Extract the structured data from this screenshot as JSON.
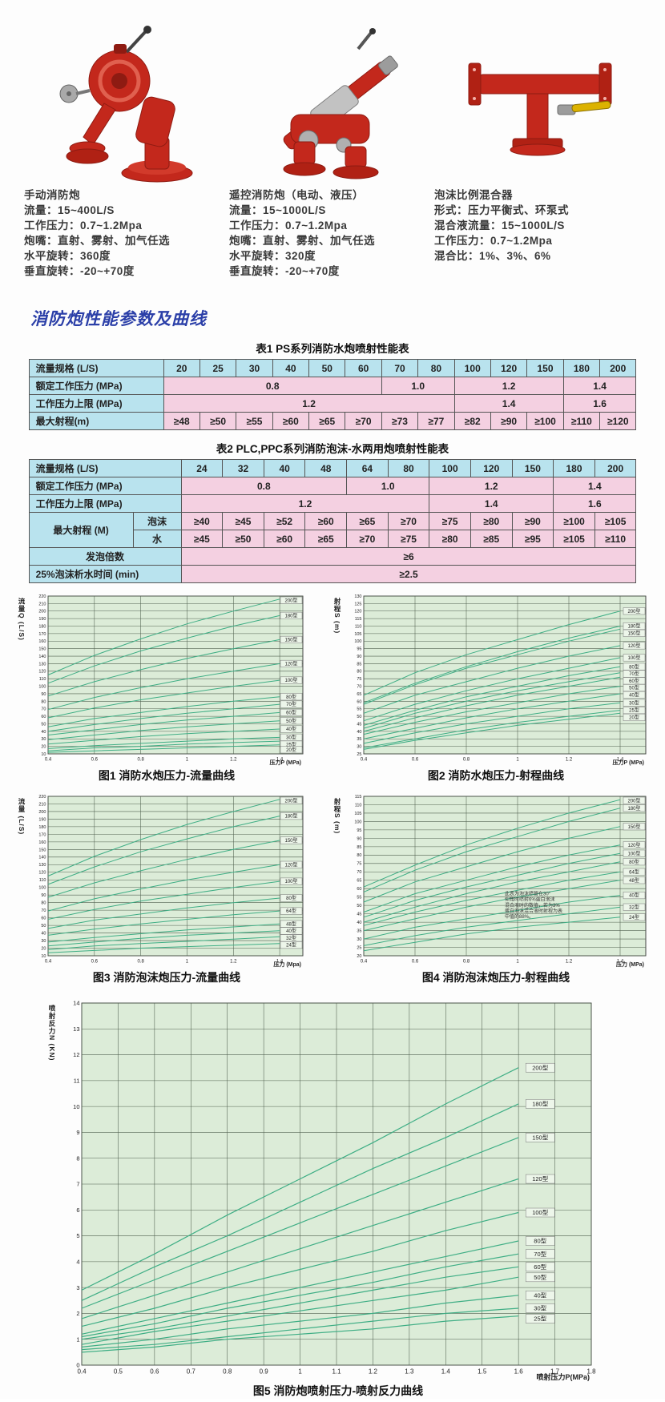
{
  "section_title": "消防炮性能参数及曲线",
  "colors": {
    "heading": "#2b3fa8",
    "table_header_bg": "#b9e3ee",
    "table_data_bg": "#f4d0e1",
    "chart_bg": "#dcecd8",
    "curve": "#3fae85",
    "monitor_red": "#c3281c",
    "valve_yellow": "#dcb200"
  },
  "products": [
    {
      "name": "手动消防炮",
      "photo_icon": "manual-fire-monitor-photo",
      "specs": [
        "流量：15~400L/S",
        "工作压力：0.7~1.2Mpa",
        "炮嘴：直射、雾射、加气任选",
        "水平旋转：360度",
        "垂直旋转：-20~+70度"
      ]
    },
    {
      "name": "遥控消防炮（电动、液压）",
      "photo_icon": "remote-fire-monitor-photo",
      "specs": [
        "流量：15~1000L/S",
        "工作压力：0.7~1.2Mpa",
        "炮嘴：直射、雾射、加气任选",
        "水平旋转：320度",
        "垂直旋转：-20~+70度"
      ]
    },
    {
      "name": "泡沫比例混合器",
      "photo_icon": "foam-proportioner-photo",
      "specs": [
        "形式：压力平衡式、环泵式",
        "混合液流量：15~1000L/S",
        "工作压力：0.7~1.2Mpa",
        "混合比：1%、3%、6%"
      ]
    }
  ],
  "table1": {
    "title": "表1   PS系列消防水炮喷射性能表",
    "flow_label": "流量规格 (L/S)",
    "flow_values": [
      "20",
      "25",
      "30",
      "40",
      "50",
      "60",
      "70",
      "80",
      "100",
      "120",
      "150",
      "180",
      "200"
    ],
    "rated_label": "额定工作压力 (MPa)",
    "rated_spans": [
      {
        "value": "0.8",
        "span": 6
      },
      {
        "value": "1.0",
        "span": 2
      },
      {
        "value": "1.2",
        "span": 3
      },
      {
        "value": "1.4",
        "span": 2
      }
    ],
    "upper_label": "工作压力上限 (MPa)",
    "upper_spans": [
      {
        "value": "1.2",
        "span": 8
      },
      {
        "value": "1.4",
        "span": 3
      },
      {
        "value": "1.6",
        "span": 2
      }
    ],
    "range_label": "最大射程(m)",
    "range_values": [
      "≥48",
      "≥50",
      "≥55",
      "≥60",
      "≥65",
      "≥70",
      "≥73",
      "≥77",
      "≥82",
      "≥90",
      "≥100",
      "≥110",
      "≥120"
    ]
  },
  "table2": {
    "title": "表2   PLC,PPC系列消防泡沫-水两用炮喷射性能表",
    "flow_label": "流量规格 (L/S)",
    "flow_values": [
      "24",
      "32",
      "40",
      "48",
      "64",
      "80",
      "100",
      "120",
      "150",
      "180",
      "200"
    ],
    "rated_label": "额定工作压力 (MPa)",
    "rated_spans": [
      {
        "value": "0.8",
        "span": 4
      },
      {
        "value": "1.0",
        "span": 2
      },
      {
        "value": "1.2",
        "span": 3
      },
      {
        "value": "1.4",
        "span": 2
      }
    ],
    "upper_label": "工作压力上限 (MPa)",
    "upper_spans": [
      {
        "value": "1.2",
        "span": 6
      },
      {
        "value": "1.4",
        "span": 3
      },
      {
        "value": "1.6",
        "span": 2
      }
    ],
    "range_label": "最大射程 (M)",
    "foam_label": "泡沫",
    "foam_values": [
      "≥40",
      "≥45",
      "≥52",
      "≥60",
      "≥65",
      "≥70",
      "≥75",
      "≥80",
      "≥90",
      "≥100",
      "≥105"
    ],
    "water_label": "水",
    "water_values": [
      "≥45",
      "≥50",
      "≥60",
      "≥65",
      "≥70",
      "≥75",
      "≥80",
      "≥85",
      "≥95",
      "≥105",
      "≥110"
    ],
    "foaming_label": "发泡倍数",
    "foaming_value": "≥6",
    "drain_label": "25%泡沫析水时间 (min)",
    "drain_value": "≥2.5"
  },
  "chart_data": [
    {
      "id": "fig1",
      "type": "line",
      "title": "图1 消防水炮压力-流量曲线",
      "xlabel": "压力P (MPa)",
      "ylabel": "流量Q (L/S)",
      "xlim": [
        0.4,
        1.5
      ],
      "ylim": [
        10,
        220
      ],
      "x": [
        0.4,
        0.6,
        0.8,
        1.0,
        1.2,
        1.4
      ],
      "xticks": [
        0.4,
        0.6,
        0.8,
        1,
        1.2,
        1.4
      ],
      "yticks": {
        "min": 10,
        "max": 220,
        "step": 10
      },
      "grid": true,
      "legend_position": "right-inside",
      "series": [
        {
          "name": "200型",
          "values": [
            115,
            141,
            163,
            183,
            200,
            216
          ]
        },
        {
          "name": "180型",
          "values": [
            104,
            127,
            147,
            164,
            180,
            194
          ]
        },
        {
          "name": "150型",
          "values": [
            87,
            106,
            122,
            137,
            150,
            162
          ]
        },
        {
          "name": "120型",
          "values": [
            69,
            85,
            98,
            110,
            120,
            130
          ]
        },
        {
          "name": "100型",
          "values": [
            58,
            71,
            82,
            91,
            100,
            108
          ]
        },
        {
          "name": "80型",
          "values": [
            46,
            57,
            65,
            73,
            80,
            86
          ]
        },
        {
          "name": "70型",
          "values": [
            40,
            49,
            57,
            64,
            70,
            76
          ]
        },
        {
          "name": "60型",
          "values": [
            35,
            42,
            49,
            55,
            60,
            65
          ]
        },
        {
          "name": "50型",
          "values": [
            29,
            35,
            41,
            46,
            50,
            54
          ]
        },
        {
          "name": "40型",
          "values": [
            23,
            28,
            33,
            37,
            40,
            43
          ]
        },
        {
          "name": "30型",
          "values": [
            17,
            21,
            24,
            27,
            30,
            32
          ]
        },
        {
          "name": "25型",
          "values": [
            14,
            18,
            20,
            23,
            25,
            27
          ]
        },
        {
          "name": "20型",
          "values": [
            12,
            14,
            16,
            18,
            20,
            22
          ]
        }
      ]
    },
    {
      "id": "fig2",
      "type": "line",
      "title": "图2 消防水炮压力-射程曲线",
      "xlabel": "压力P (MPa)",
      "ylabel": "射程S (m)",
      "xlim": [
        0.4,
        1.5
      ],
      "ylim": [
        25,
        130
      ],
      "x": [
        0.4,
        0.6,
        0.8,
        1.0,
        1.2,
        1.4
      ],
      "xticks": [
        0.4,
        0.6,
        0.8,
        1,
        1.2,
        1.4
      ],
      "yticks": {
        "min": 25,
        "max": 130,
        "step": 5
      },
      "grid": true,
      "legend_position": "right-inside",
      "series": [
        {
          "name": "200型",
          "values": [
            64,
            79,
            91,
            101,
            111,
            120
          ]
        },
        {
          "name": "180型",
          "values": [
            59,
            72,
            83,
            93,
            102,
            110
          ]
        },
        {
          "name": "150型",
          "values": [
            58,
            71,
            82,
            91,
            100,
            108
          ]
        },
        {
          "name": "120型",
          "values": [
            52,
            64,
            73,
            82,
            90,
            97
          ]
        },
        {
          "name": "100型",
          "values": [
            47,
            58,
            67,
            75,
            82,
            89
          ]
        },
        {
          "name": "80型",
          "values": [
            44,
            54,
            63,
            70,
            77,
            83
          ]
        },
        {
          "name": "70型",
          "values": [
            42,
            52,
            60,
            67,
            73,
            79
          ]
        },
        {
          "name": "60型",
          "values": [
            40,
            49,
            57,
            64,
            70,
            76
          ]
        },
        {
          "name": "50型",
          "values": [
            38,
            46,
            53,
            59,
            65,
            70
          ]
        },
        {
          "name": "40型",
          "values": [
            35,
            42,
            49,
            55,
            60,
            65
          ]
        },
        {
          "name": "30型",
          "values": [
            32,
            39,
            45,
            50,
            55,
            59
          ]
        },
        {
          "name": "25型",
          "values": [
            29,
            35,
            41,
            46,
            50,
            54
          ]
        },
        {
          "name": "20型",
          "values": [
            28,
            34,
            39,
            44,
            48,
            52
          ]
        }
      ]
    },
    {
      "id": "fig3",
      "type": "line",
      "title": "图3 消防泡沫炮压力-流量曲线",
      "xlabel": "压力 (Mpa)",
      "ylabel": "流量 (L/S)",
      "xlim": [
        0.4,
        1.5
      ],
      "ylim": [
        10,
        220
      ],
      "x": [
        0.4,
        0.6,
        0.8,
        1.0,
        1.2,
        1.4
      ],
      "xticks": [
        0.4,
        0.6,
        0.8,
        1,
        1.2,
        1.4
      ],
      "yticks": {
        "min": 10,
        "max": 220,
        "step": 10
      },
      "grid": true,
      "legend_position": "right-inside",
      "series": [
        {
          "name": "200型",
          "values": [
            115,
            141,
            163,
            183,
            200,
            216
          ]
        },
        {
          "name": "180型",
          "values": [
            104,
            127,
            147,
            164,
            180,
            194
          ]
        },
        {
          "name": "150型",
          "values": [
            87,
            106,
            122,
            137,
            150,
            162
          ]
        },
        {
          "name": "120型",
          "values": [
            69,
            85,
            98,
            110,
            120,
            130
          ]
        },
        {
          "name": "100型",
          "values": [
            58,
            71,
            82,
            91,
            100,
            108
          ]
        },
        {
          "name": "80型",
          "values": [
            46,
            57,
            65,
            73,
            80,
            86
          ]
        },
        {
          "name": "64型",
          "values": [
            37,
            45,
            52,
            58,
            64,
            69
          ]
        },
        {
          "name": "48型",
          "values": [
            28,
            34,
            39,
            44,
            48,
            52
          ]
        },
        {
          "name": "40型",
          "values": [
            23,
            28,
            33,
            37,
            40,
            43
          ]
        },
        {
          "name": "32型",
          "values": [
            18,
            23,
            26,
            29,
            32,
            35
          ]
        },
        {
          "name": "24型",
          "values": [
            14,
            17,
            20,
            22,
            24,
            26
          ]
        }
      ]
    },
    {
      "id": "fig4",
      "type": "line",
      "title": "图4 消防泡沫炮压力-射程曲线",
      "xlabel": "压力 (MPa)",
      "ylabel": "射程S (m)",
      "xlim": [
        0.4,
        1.5
      ],
      "ylim": [
        20,
        115
      ],
      "x": [
        0.4,
        0.6,
        0.8,
        1.0,
        1.2,
        1.4
      ],
      "xticks": [
        0.4,
        0.6,
        0.8,
        1,
        1.2,
        1.4
      ],
      "yticks": {
        "min": 20,
        "max": 115,
        "step": 5
      },
      "grid": true,
      "legend_position": "right-inside",
      "annotation_lines": [
        "此表为泡沫喷管在30°",
        "仰角时喷射6%蛋白泡沫",
        "混合液时的数值，若为3%",
        "蛋白泡沫混合液时射程为表",
        "中值的88%。"
      ],
      "ann_fx": 0.5,
      "ann_fy": 0.62,
      "series": [
        {
          "name": "200型",
          "values": [
            61,
            74,
            86,
            96,
            105,
            113
          ]
        },
        {
          "name": "180型",
          "values": [
            58,
            71,
            82,
            91,
            100,
            108
          ]
        },
        {
          "name": "150型",
          "values": [
            52,
            64,
            73,
            82,
            90,
            97
          ]
        },
        {
          "name": "120型",
          "values": [
            46,
            57,
            65,
            73,
            80,
            86
          ]
        },
        {
          "name": "100型",
          "values": [
            43,
            53,
            61,
            68,
            75,
            81
          ]
        },
        {
          "name": "80型",
          "values": [
            40,
            49,
            57,
            64,
            70,
            76
          ]
        },
        {
          "name": "64型",
          "values": [
            38,
            46,
            53,
            59,
            65,
            70
          ]
        },
        {
          "name": "48型",
          "values": [
            35,
            42,
            49,
            55,
            60,
            65
          ]
        },
        {
          "name": "40型",
          "values": [
            30,
            37,
            42,
            47,
            52,
            56
          ]
        },
        {
          "name": "32型",
          "values": [
            26,
            32,
            37,
            41,
            45,
            49
          ]
        },
        {
          "name": "24型",
          "values": [
            23,
            28,
            33,
            37,
            40,
            43
          ]
        }
      ]
    },
    {
      "id": "fig5",
      "type": "line",
      "title": "图5 消防炮喷射压力-喷射反力曲线",
      "xlabel": "喷射压力P(MPa)",
      "ylabel": "喷射反力N (KN)",
      "xlim": [
        0.4,
        1.8
      ],
      "ylim": [
        0,
        14
      ],
      "x": [
        0.4,
        0.6,
        0.8,
        1.0,
        1.2,
        1.4,
        1.6
      ],
      "xticks": [
        0.4,
        0.5,
        0.6,
        0.7,
        0.8,
        0.9,
        1,
        1.1,
        1.2,
        1.3,
        1.4,
        1.5,
        1.6,
        1.7,
        1.8
      ],
      "yticks": {
        "min": 0,
        "max": 14,
        "step": 1
      },
      "grid": true,
      "legend_position": "right-inside",
      "big": true,
      "label_x": 1.62,
      "series": [
        {
          "name": "200型",
          "values": [
            2.9,
            4.3,
            5.8,
            7.2,
            8.6,
            10.1,
            11.5
          ]
        },
        {
          "name": "180型",
          "values": [
            2.5,
            3.8,
            5.0,
            6.3,
            7.6,
            8.8,
            10.1
          ]
        },
        {
          "name": "150型",
          "values": [
            2.2,
            3.3,
            4.4,
            5.5,
            6.6,
            7.7,
            8.8
          ]
        },
        {
          "name": "120型",
          "values": [
            1.8,
            2.7,
            3.6,
            4.5,
            5.4,
            6.3,
            7.2
          ]
        },
        {
          "name": "100型",
          "values": [
            1.5,
            2.2,
            3.0,
            3.7,
            4.4,
            5.2,
            5.9
          ]
        },
        {
          "name": "80型",
          "values": [
            1.2,
            1.8,
            2.4,
            3.0,
            3.6,
            4.2,
            4.8
          ]
        },
        {
          "name": "70型",
          "values": [
            1.1,
            1.6,
            2.2,
            2.7,
            3.2,
            3.8,
            4.3
          ]
        },
        {
          "name": "60型",
          "values": [
            1.0,
            1.4,
            1.9,
            2.4,
            2.9,
            3.4,
            3.8
          ]
        },
        {
          "name": "50型",
          "values": [
            0.8,
            1.3,
            1.7,
            2.1,
            2.5,
            2.9,
            3.4
          ]
        },
        {
          "name": "40型",
          "values": [
            0.7,
            1.0,
            1.4,
            1.7,
            2.0,
            2.4,
            2.7
          ]
        },
        {
          "name": "30型",
          "values": [
            0.6,
            0.8,
            1.1,
            1.4,
            1.7,
            2.0,
            2.2
          ]
        },
        {
          "name": "25型",
          "values": [
            0.5,
            0.7,
            1.0,
            1.2,
            1.4,
            1.7,
            1.9
          ]
        }
      ]
    }
  ]
}
